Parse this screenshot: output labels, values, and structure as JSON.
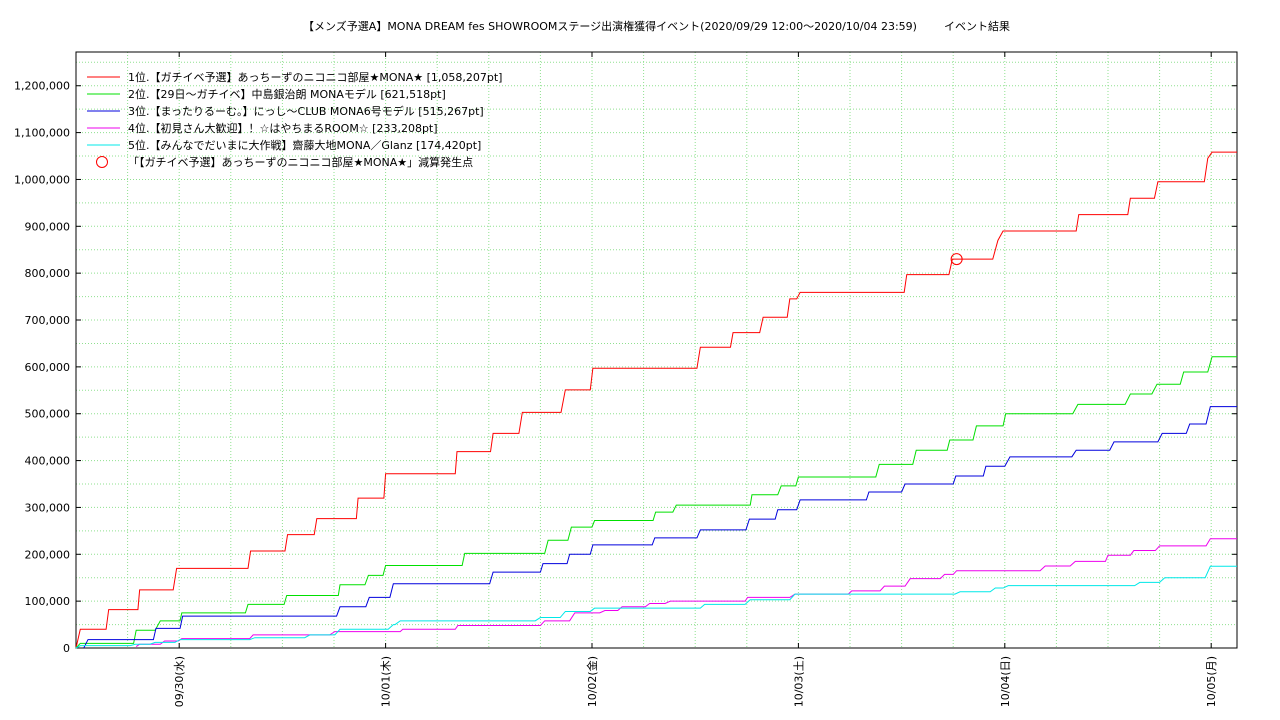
{
  "chart_data": {
    "type": "line",
    "title": "【メンズ予選A】MONA DREAM fes SHOWROOMステージ出演権獲得イベント(2020/09/29 12:00〜2020/10/04 23:59)",
    "subtitle": "イベント結果",
    "xlim": [
      0,
      135
    ],
    "ylim": [
      0,
      1272000
    ],
    "xticks": [
      {
        "value": 12,
        "label": "09/30(水)"
      },
      {
        "value": 36,
        "label": "10/01(木)"
      },
      {
        "value": 60,
        "label": "10/02(金)"
      },
      {
        "value": 84,
        "label": "10/03(土)"
      },
      {
        "value": 108,
        "label": "10/04(日)"
      },
      {
        "value": 132,
        "label": "10/05(月)"
      }
    ],
    "yticks": [
      0,
      {
        "value": 100000,
        "label": "100,000"
      },
      {
        "value": 200000,
        "label": "200,000"
      },
      {
        "value": 300000,
        "label": "300,000"
      },
      {
        "value": 400000,
        "label": "400,000"
      },
      {
        "value": 500000,
        "label": "500,000"
      },
      {
        "value": 600000,
        "label": "600,000"
      },
      {
        "value": 700000,
        "label": "700,000"
      },
      {
        "value": 800000,
        "label": "800,000"
      },
      {
        "value": 900000,
        "label": "900,000"
      },
      {
        "value": 1000000,
        "label": "1,000,000"
      },
      {
        "value": 1100000,
        "label": "1,100,000"
      },
      {
        "value": 1200000,
        "label": "1,200,000"
      }
    ],
    "xgrid": [
      6,
      12,
      18,
      24,
      30,
      36,
      42,
      48,
      54,
      60,
      66,
      72,
      78,
      84,
      90,
      96,
      102,
      108,
      114,
      120,
      126,
      132
    ],
    "ygrid": [
      50000,
      100000,
      150000,
      200000,
      250000,
      300000,
      350000,
      400000,
      450000,
      500000,
      550000,
      600000,
      650000,
      700000,
      750000,
      800000,
      850000,
      900000,
      950000,
      1000000,
      1050000,
      1100000,
      1150000,
      1200000,
      1250000
    ],
    "grid": true,
    "legend": "upper left",
    "series": [
      {
        "name": "1位.【ガチイベ予選】あっちーずのニコニコ部屋★MONA★ [1,058,207pt]",
        "color": "#ff0000",
        "x": [
          0,
          0.5,
          3.5,
          3.8,
          7.2,
          7.4,
          11.3,
          11.7,
          20,
          20.3,
          24.3,
          24.6,
          27.7,
          28,
          32.6,
          32.8,
          35.8,
          36,
          44.1,
          44.3,
          48.2,
          48.5,
          51.5,
          51.9,
          56.4,
          56.9,
          59.8,
          60.1,
          72.2,
          72.6,
          76.1,
          76.4,
          79.5,
          79.9,
          82.7,
          83,
          83.8,
          84.2,
          96.3,
          96.6,
          101.5,
          101.9,
          106.6,
          107.2,
          107.8,
          116.3,
          116.6,
          122.3,
          122.6,
          125.4,
          125.8,
          131.2,
          131.6,
          132.1,
          135
        ],
        "values": [
          0,
          40000,
          40000,
          82000,
          82000,
          124000,
          124000,
          170000,
          170000,
          207000,
          207000,
          242000,
          242000,
          276000,
          276000,
          320000,
          320000,
          372000,
          372000,
          419000,
          419000,
          458000,
          458000,
          503000,
          503000,
          551000,
          551000,
          597000,
          597000,
          642000,
          642000,
          673000,
          673000,
          706000,
          706000,
          745000,
          745000,
          759000,
          759000,
          797000,
          797000,
          830000,
          830000,
          870000,
          890000,
          890000,
          925000,
          925000,
          960000,
          960000,
          995000,
          995000,
          1045000,
          1058207,
          1058207
        ]
      },
      {
        "name": "2位.【29日〜ガチイベ】中島銀治朗 MONAモデル [621,518pt]",
        "color": "#00e000",
        "x": [
          0,
          0.5,
          6.7,
          7,
          9.2,
          9.8,
          12.1,
          12.3,
          19.7,
          20,
          24.2,
          24.5,
          30.5,
          30.7,
          33.6,
          34,
          35.7,
          36,
          44.9,
          45.2,
          54.5,
          54.9,
          57.2,
          57.6,
          60,
          60.3,
          67.1,
          67.4,
          69.4,
          69.8,
          78.4,
          78.6,
          81.6,
          82,
          83.7,
          84,
          93,
          93.4,
          97.3,
          97.7,
          101.3,
          101.6,
          104.3,
          104.7,
          107.8,
          108.1,
          115.9,
          116.5,
          122,
          122.6,
          125.1,
          125.7,
          128.4,
          128.8,
          131.6,
          132.1,
          135
        ],
        "values": [
          0,
          10000,
          10000,
          38000,
          38000,
          58000,
          58000,
          75000,
          75000,
          93000,
          93000,
          112000,
          112000,
          135000,
          135000,
          155000,
          155000,
          176000,
          176000,
          202000,
          202000,
          230000,
          230000,
          258000,
          258000,
          272000,
          272000,
          290000,
          290000,
          305000,
          305000,
          327000,
          327000,
          346000,
          346000,
          365000,
          365000,
          392000,
          392000,
          422000,
          422000,
          444000,
          444000,
          474000,
          474000,
          500000,
          500000,
          520000,
          520000,
          542000,
          542000,
          563000,
          563000,
          589000,
          589000,
          621518,
          621518
        ]
      },
      {
        "name": "3位.【まったりるーむ。】にっし〜CLUB MONA6号モデル [515,267pt]",
        "color": "#0000dd",
        "x": [
          0.9,
          1.4,
          9,
          9.3,
          12.1,
          12.4,
          30.3,
          30.7,
          33.7,
          34.1,
          36.5,
          36.9,
          48.1,
          48.5,
          54,
          54.3,
          57.1,
          57.4,
          59.8,
          60.1,
          67,
          67.3,
          72.2,
          72.6,
          77.9,
          78.3,
          81.3,
          81.6,
          83.8,
          84.2,
          91.9,
          92.2,
          96,
          96.4,
          102,
          102.3,
          105.5,
          105.8,
          108,
          108.6,
          115.8,
          116.3,
          120.2,
          120.7,
          125.8,
          126.3,
          129.1,
          129.5,
          131.4,
          131.9,
          135
        ],
        "values": [
          0,
          18000,
          18000,
          42000,
          42000,
          68000,
          68000,
          88000,
          88000,
          108000,
          108000,
          137000,
          137000,
          162000,
          162000,
          180000,
          180000,
          200000,
          200000,
          220000,
          220000,
          235000,
          235000,
          252000,
          252000,
          275000,
          275000,
          295000,
          295000,
          316000,
          316000,
          333000,
          333000,
          350000,
          350000,
          367000,
          367000,
          388000,
          388000,
          408000,
          408000,
          422000,
          422000,
          440000,
          440000,
          458000,
          458000,
          478000,
          478000,
          515267,
          515267
        ]
      },
      {
        "name": "4位.【初見さん大歓迎】！☆はやちまるROOM☆ [233,208pt]",
        "color": "#ee00ee",
        "x": [
          7,
          7.4,
          9.8,
          10.3,
          11.9,
          12.3,
          20.2,
          20.6,
          29.5,
          30.1,
          37.7,
          38,
          44.1,
          44.4,
          54,
          54.5,
          57.4,
          58,
          60.9,
          61.5,
          63,
          63.5,
          66.2,
          66.7,
          68.5,
          69.1,
          77.8,
          78.1,
          83,
          83.6,
          89.8,
          90.2,
          93.5,
          94,
          96.4,
          97,
          100.5,
          101,
          102,
          102.4,
          112.1,
          112.7,
          115.6,
          116.2,
          119.7,
          120,
          122.6,
          123,
          125.5,
          126,
          131.4,
          131.9,
          135
        ],
        "values": [
          3000,
          8000,
          8000,
          15000,
          15000,
          20000,
          20000,
          28000,
          28000,
          35000,
          35000,
          40000,
          40000,
          48000,
          48000,
          58000,
          58000,
          75000,
          75000,
          80000,
          80000,
          88000,
          88000,
          95000,
          95000,
          100000,
          100000,
          108000,
          108000,
          115000,
          115000,
          122000,
          122000,
          132000,
          132000,
          148000,
          148000,
          157000,
          157000,
          165000,
          165000,
          175000,
          175000,
          185000,
          185000,
          198000,
          198000,
          208000,
          208000,
          218000,
          218000,
          233208,
          233208
        ]
      },
      {
        "name": "5位.【みんなでだいまに大作戦】齋藤大地MONA／Glanz [174,420pt]",
        "color": "#00e8e8",
        "x": [
          0,
          0.5,
          6.3,
          6.9,
          8.6,
          9.2,
          11.5,
          12.1,
          20.2,
          20.8,
          26.6,
          27.2,
          30.1,
          30.7,
          36.3,
          36.9,
          37.1,
          37.7,
          53.4,
          54,
          56.3,
          56.9,
          59.8,
          60.3,
          72.6,
          73.1,
          77.8,
          78.4,
          83,
          83.6,
          102.2,
          102.8,
          106.3,
          106.9,
          107.8,
          108.4,
          123.1,
          123.7,
          126,
          126.6,
          131.3,
          131.9,
          135
        ],
        "values": [
          0,
          5000,
          5000,
          8000,
          8000,
          12000,
          12000,
          18000,
          18000,
          22000,
          22000,
          28000,
          28000,
          40000,
          40000,
          50000,
          50000,
          58000,
          58000,
          65000,
          65000,
          78000,
          78000,
          85000,
          85000,
          93000,
          93000,
          103000,
          103000,
          115000,
          115000,
          120000,
          120000,
          128000,
          128000,
          133000,
          133000,
          140000,
          140000,
          150000,
          150000,
          174420,
          174420
        ]
      },
      {
        "name": "「【ガチイベ予選】あっちーずのニコニコ部屋★MONA★」減算発生点",
        "color": "#ff0000",
        "marker": "circle",
        "x": [
          102.4
        ],
        "values": [
          830000
        ]
      }
    ]
  }
}
